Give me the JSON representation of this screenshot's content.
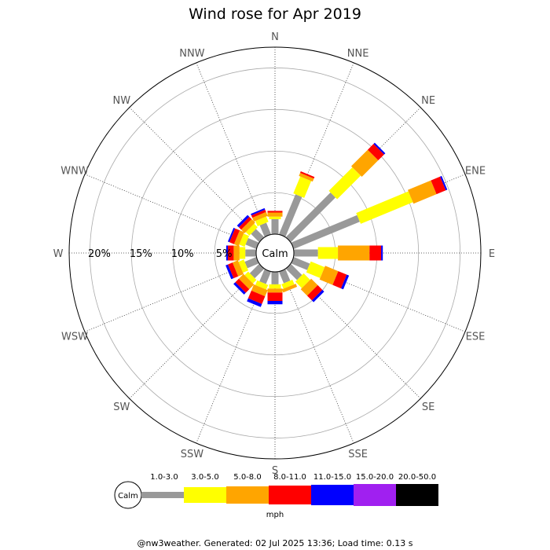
{
  "chart_data": {
    "type": "wind-rose",
    "title": "Wind rose for Apr 2019",
    "units": "mph",
    "calm_label": "Calm",
    "directions": [
      "N",
      "NNE",
      "NE",
      "ENE",
      "E",
      "ESE",
      "SE",
      "SSE",
      "S",
      "SSW",
      "SW",
      "WSW",
      "W",
      "WNW",
      "NW",
      "NNW"
    ],
    "rings_percent": [
      5,
      10,
      15,
      20
    ],
    "ring_labels": [
      "5%",
      "10%",
      "15%",
      "20%"
    ],
    "rmax_percent": 22.5,
    "bins": [
      {
        "name": "1.0-3.0",
        "color": "#999999"
      },
      {
        "name": "3.0-5.0",
        "color": "#ffff00"
      },
      {
        "name": "5.0-8.0",
        "color": "#ffa500"
      },
      {
        "name": "8.0-11.0",
        "color": "#ff0000"
      },
      {
        "name": "11.0-15.0",
        "color": "#0000ff"
      },
      {
        "name": "15.0-20.0",
        "color": "#a020f0"
      },
      {
        "name": "20.0-50.0",
        "color": "#000000"
      }
    ],
    "cumulative_percent": [
      [
        1.8,
        2.1,
        2.6,
        2.8,
        2.8,
        2.8,
        2.8
      ],
      [
        5.2,
        7.4,
        7.8,
        8.0,
        8.0,
        8.0,
        8.0
      ],
      [
        7.6,
        11.6,
        14.4,
        15.4,
        15.6,
        15.6,
        15.6
      ],
      [
        8.6,
        15.4,
        18.4,
        19.6,
        19.8,
        19.8,
        19.8
      ],
      [
        2.9,
        5.3,
        9.1,
        10.5,
        10.7,
        10.7,
        10.7
      ],
      [
        2.1,
        3.9,
        5.6,
        6.7,
        7.0,
        7.0,
        7.0
      ],
      [
        1.9,
        3.0,
        4.1,
        4.9,
        5.2,
        5.2,
        5.2
      ],
      [
        1.5,
        2.1,
        2.5,
        2.5,
        2.5,
        2.5,
        2.5
      ],
      [
        1.5,
        2.0,
        2.5,
        3.5,
        3.9,
        3.9,
        3.9
      ],
      [
        1.6,
        2.2,
        3.0,
        4.0,
        4.4,
        4.4,
        4.4
      ],
      [
        1.6,
        2.2,
        3.0,
        3.6,
        3.9,
        3.9,
        3.9
      ],
      [
        1.5,
        2.2,
        2.9,
        3.5,
        3.8,
        3.8,
        3.8
      ],
      [
        1.3,
        2.0,
        2.7,
        3.4,
        3.6,
        3.6,
        3.6
      ],
      [
        1.4,
        2.1,
        2.7,
        3.3,
        3.5,
        3.5,
        3.5
      ],
      [
        1.4,
        2.0,
        2.6,
        3.0,
        3.3,
        3.3,
        3.3
      ],
      [
        1.5,
        2.2,
        2.7,
        3.0,
        3.2,
        3.2,
        3.2
      ]
    ]
  },
  "footer": "@nw3weather. Generated: 02 Jul 2025 13:36; Load time: 0.13 s"
}
